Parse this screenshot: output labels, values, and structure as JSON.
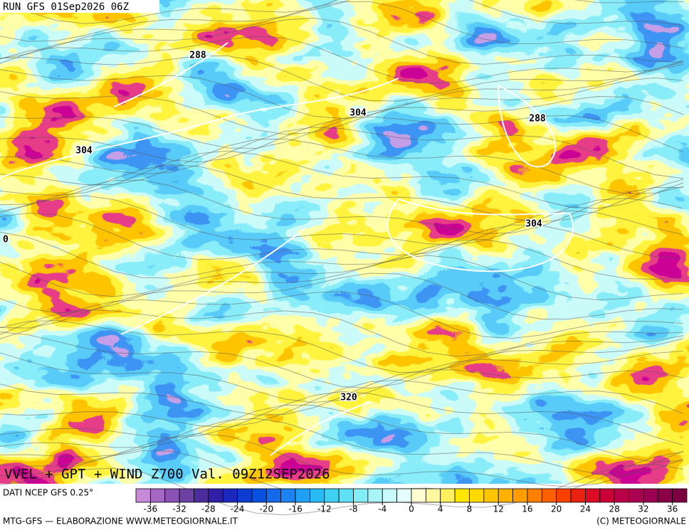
{
  "header": {
    "run": "RUN GFS 01Sep2026 06Z"
  },
  "map": {
    "title": "VVEL + GPT + WIND Z700 Val. 09Z12SEP2026",
    "contour_labels": [
      288,
      304,
      304,
      288,
      304,
      320,
      0
    ]
  },
  "colorbar": {
    "source": "DATI NCEP GFS 0.25°",
    "ticks": [
      -36,
      -32,
      -28,
      -24,
      -20,
      -16,
      -12,
      -8,
      -4,
      0,
      4,
      8,
      12,
      16,
      20,
      24,
      28,
      32,
      36
    ],
    "colors": [
      "#c88ad8",
      "#a468c4",
      "#8a52b4",
      "#6c40a4",
      "#4a2c9c",
      "#3020a8",
      "#1c28bc",
      "#0c3cd0",
      "#0a50e0",
      "#1468ea",
      "#1c84f2",
      "#20a0f4",
      "#28bcf4",
      "#40d0f4",
      "#60e0f4",
      "#84ecf4",
      "#a8f4f6",
      "#c8fafa",
      "#e4fefe",
      "#fffcd0",
      "#fff8a0",
      "#fff060",
      "#ffe800",
      "#ffd800",
      "#ffc400",
      "#ffb000",
      "#ff9c00",
      "#ff8000",
      "#ff6000",
      "#f84000",
      "#ea2010",
      "#dc0c28",
      "#cc0038",
      "#bc0048",
      "#ac0050",
      "#9c0050",
      "#8c0048",
      "#7c0040"
    ]
  },
  "footer": {
    "left": "MTG-GFS — ELABORAZIONE WWW.METEOGIORNALE.IT",
    "right": "(C) METEOGIORNALE"
  }
}
